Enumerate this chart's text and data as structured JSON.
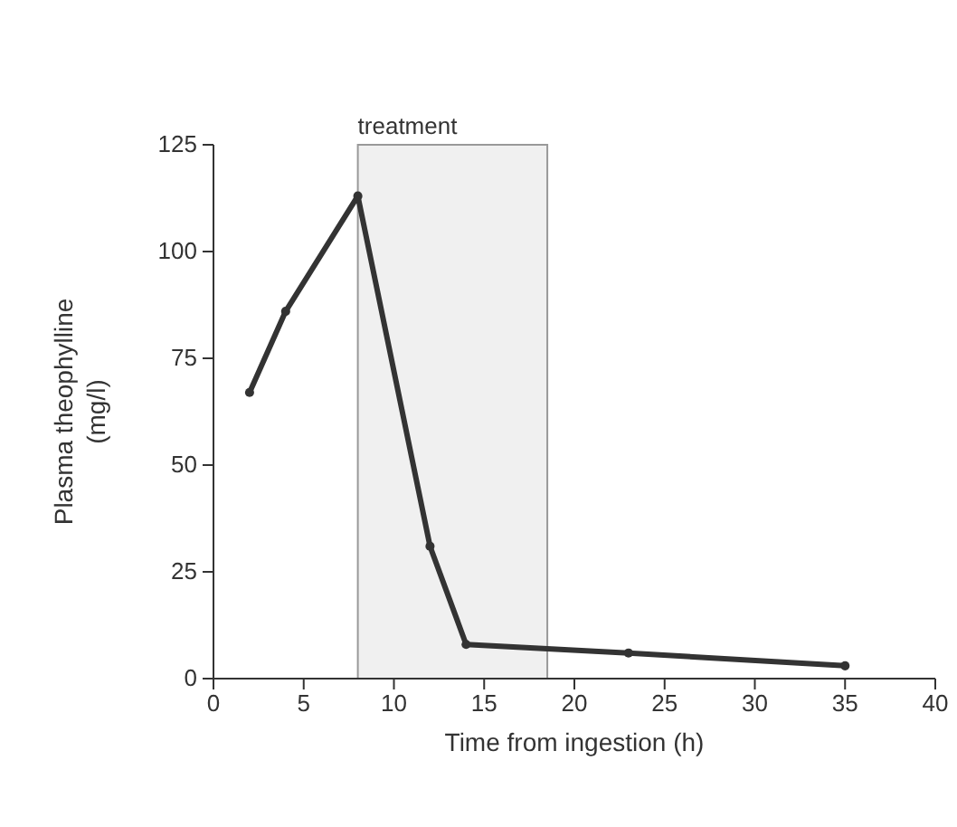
{
  "chart_data": {
    "type": "line",
    "xlabel": "Time from ingestion (h)",
    "ylabel": "Plasma theophylline\n(mg/l)",
    "x": [
      2,
      4,
      8,
      12,
      14,
      23,
      35
    ],
    "series": [
      {
        "color": "#333333",
        "values": [
          67,
          86,
          113,
          31,
          8,
          6,
          3
        ]
      }
    ],
    "xlim": [
      0,
      40
    ],
    "xticks": [
      0,
      5,
      10,
      15,
      20,
      25,
      30,
      35,
      40
    ],
    "ylim": [
      0,
      125
    ],
    "yticks": [
      0,
      25,
      50,
      75,
      100,
      125
    ],
    "bands": [
      {
        "axis": "x",
        "from": 8,
        "to": 18.5,
        "label": "treatment",
        "color": "#f0f0f0"
      }
    ],
    "marker": "circle",
    "line_style": "solid"
  }
}
